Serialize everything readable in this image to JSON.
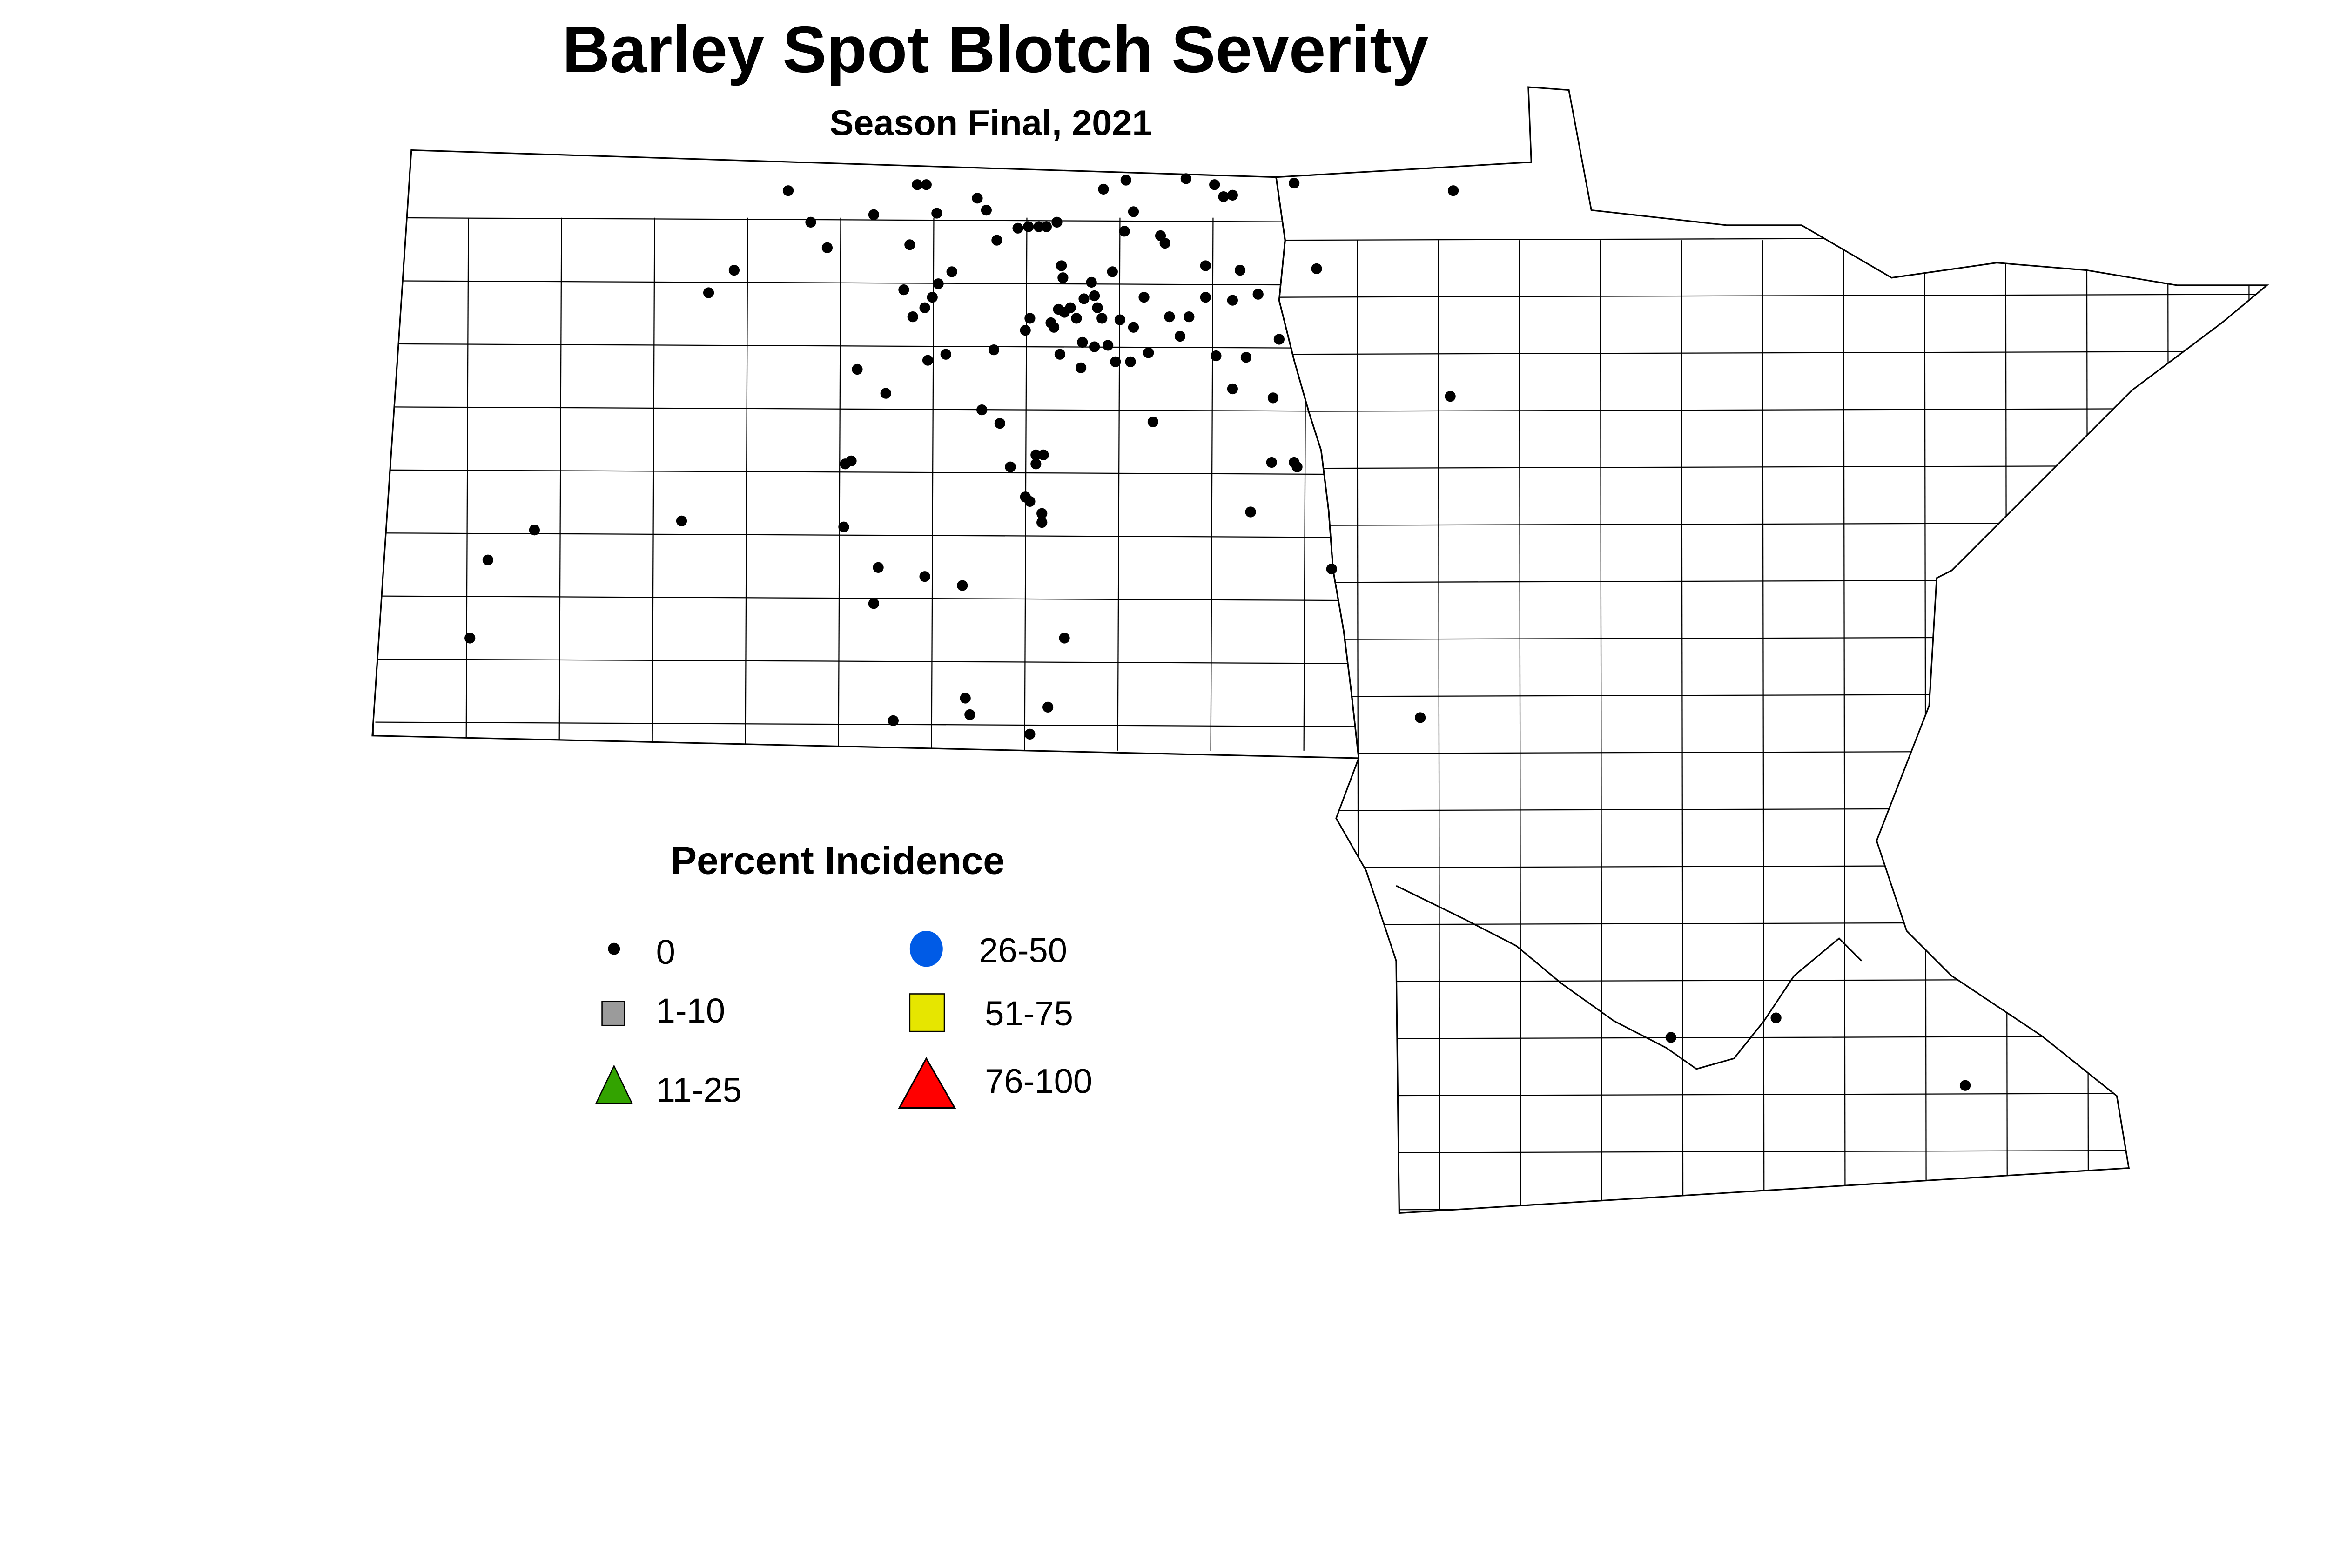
{
  "title": "Barley Spot Blotch Severity",
  "subtitle": "Season Final, 2021",
  "legend": {
    "title": "Percent Incidence",
    "items": [
      {
        "label": "0",
        "shape": "dot",
        "color": "#000000"
      },
      {
        "label": "1-10",
        "shape": "square",
        "color": "#9b9b9b"
      },
      {
        "label": "11-25",
        "shape": "triangle",
        "color": "#33a300"
      },
      {
        "label": "26-50",
        "shape": "circle",
        "color": "#005be6"
      },
      {
        "label": "51-75",
        "shape": "square",
        "color": "#e6e600"
      },
      {
        "label": "76-100",
        "shape": "triangle",
        "color": "#ff0000"
      }
    ]
  },
  "map": {
    "regions": [
      "North Dakota",
      "Minnesota"
    ],
    "boundaries": "county"
  },
  "sites_incidence_class": [
    "0",
    "0",
    "0",
    "0",
    "0",
    "0",
    "0",
    "0",
    "0",
    "0",
    "0",
    "0",
    "0",
    "0",
    "0",
    "0",
    "0",
    "0",
    "0",
    "0",
    "0",
    "0",
    "0",
    "0",
    "0",
    "0",
    "0",
    "0",
    "0",
    "0",
    "0",
    "0",
    "0",
    "0",
    "0",
    "0",
    "0",
    "0",
    "0",
    "0",
    "0",
    "0",
    "0",
    "0",
    "0",
    "0",
    "0",
    "0",
    "0",
    "0",
    "0",
    "0",
    "0",
    "0",
    "0",
    "0",
    "0",
    "0",
    "0",
    "0",
    "0",
    "0",
    "0",
    "0",
    "0",
    "0",
    "0",
    "0",
    "0",
    "0",
    "0",
    "0",
    "0",
    "0",
    "0",
    "0",
    "0",
    "0",
    "0",
    "0",
    "0",
    "0",
    "0",
    "0",
    "0",
    "0",
    "0",
    "0",
    "0",
    "0",
    "0",
    "0",
    "0",
    "0",
    "0",
    "0",
    "0",
    "0",
    "0",
    "0",
    "0",
    "0",
    "0",
    "0",
    "0",
    "0",
    "0",
    "0",
    "0",
    "0",
    "0",
    "0",
    "0",
    "0",
    "0",
    "0",
    "0",
    "0",
    "0",
    "0",
    "0"
  ]
}
